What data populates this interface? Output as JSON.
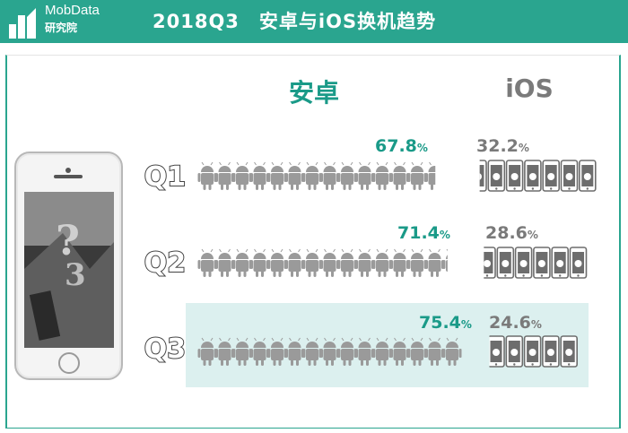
{
  "brand": {
    "name": "MobData",
    "sub": "研究院"
  },
  "title": "2018Q3　安卓与iOS换机趋势",
  "columns": {
    "android": "安卓",
    "ios": "iOS"
  },
  "colors": {
    "android": "#1a9a88",
    "ios": "#7a7a7a",
    "header": "#2aa58f",
    "highlight": "#dcf0ef"
  },
  "chart_data": {
    "type": "bar",
    "title": "2018Q3　安卓与iOS换机趋势",
    "categories": [
      "Q1",
      "Q2",
      "Q3"
    ],
    "series": [
      {
        "name": "安卓",
        "values": [
          67.8,
          71.4,
          75.4
        ],
        "labels": [
          "67.8",
          "71.4",
          "75.4"
        ]
      },
      {
        "name": "iOS",
        "values": [
          32.2,
          28.6,
          24.6
        ],
        "labels": [
          "32.2",
          "28.6",
          "24.6"
        ]
      }
    ],
    "unit": "%",
    "highlight_category": "Q3"
  }
}
